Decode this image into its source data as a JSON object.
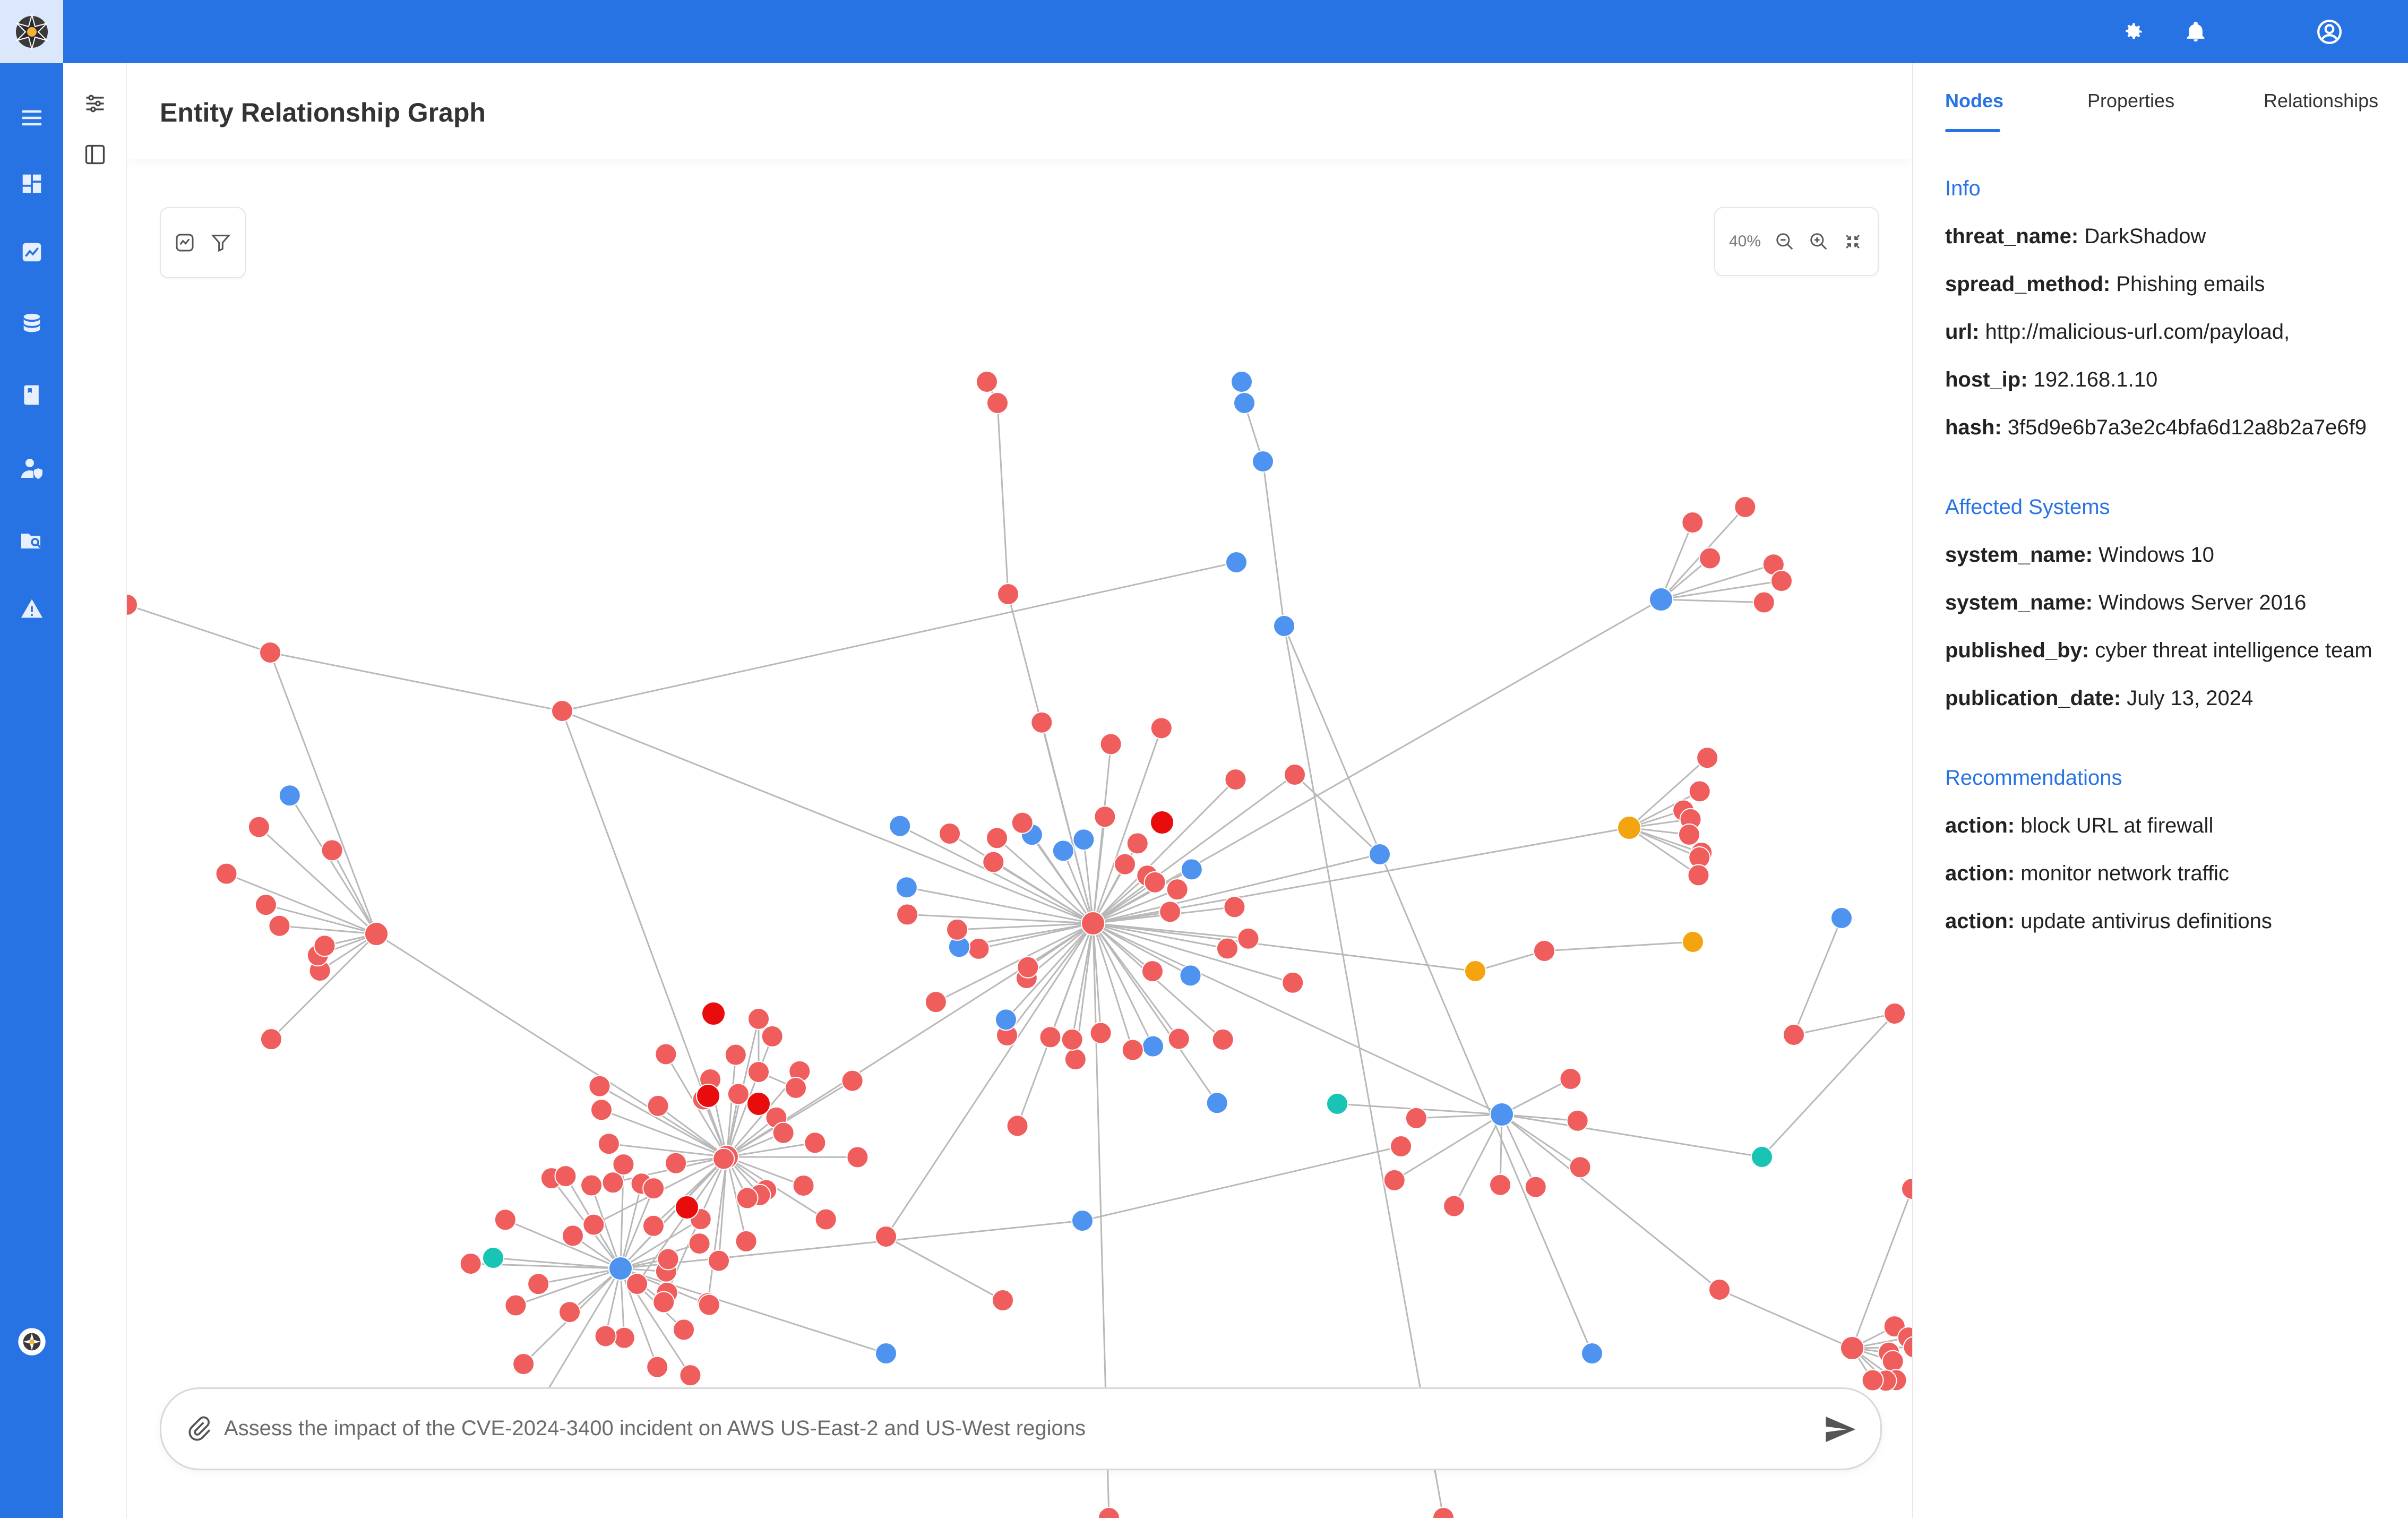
{
  "header": {
    "title": "Entity Relationship Graph"
  },
  "topbar": {
    "icons": [
      "gear-icon",
      "bell-icon",
      "user-circle-icon"
    ]
  },
  "sidebar": {
    "icons": [
      "menu-icon",
      "dashboard-icon",
      "analytics-icon",
      "database-icon",
      "book-icon",
      "user-shield-icon",
      "folder-search-icon",
      "alert-icon",
      "logo-badge-icon"
    ]
  },
  "toolbar": {
    "zoom_level": "40%"
  },
  "chat": {
    "placeholder": "Assess the impact of the CVE-2024-3400 incident on AWS US-East-2 and US-West regions"
  },
  "panel": {
    "tabs": [
      "Nodes",
      "Properties",
      "Relationships"
    ],
    "active_tab": "Nodes",
    "sections": [
      {
        "title": "Info",
        "items": [
          {
            "key": "threat_name:",
            "value": " DarkShadow"
          },
          {
            "key": "spread_method:",
            "value": " Phishing emails"
          },
          {
            "key": "url:",
            "value": " http://malicious-url.com/payload,"
          },
          {
            "key": "host_ip:",
            "value": " 192.168.1.10"
          },
          {
            "key": "hash:",
            "value": " 3f5d9e6b7a3e2c4bfa6d12a8b2a7e6f9"
          }
        ]
      },
      {
        "title": "Affected Systems",
        "items": [
          {
            "key": "system_name:",
            "value": " Windows 10"
          },
          {
            "key": "system_name:",
            "value": " Windows Server 2016"
          },
          {
            "key": "published_by:",
            "value": " cyber threat intelligence team"
          },
          {
            "key": "publication_date:",
            "value": " July 13, 2024"
          }
        ]
      },
      {
        "title": "Recommendations",
        "items": [
          {
            "key": "action:",
            "value": " block URL at firewall"
          },
          {
            "key": "action:",
            "value": " monitor network traffic"
          },
          {
            "key": "action:",
            "value": " update antivirus definitions"
          }
        ]
      }
    ]
  },
  "colors": {
    "brand": "#2873e4",
    "node_red": "#ef5d5d",
    "node_bright_red": "#e80c0c",
    "node_blue": "#4f93f0",
    "node_orange": "#f4a40f",
    "node_teal": "#18c4b4",
    "edge": "#b9b9b9"
  }
}
